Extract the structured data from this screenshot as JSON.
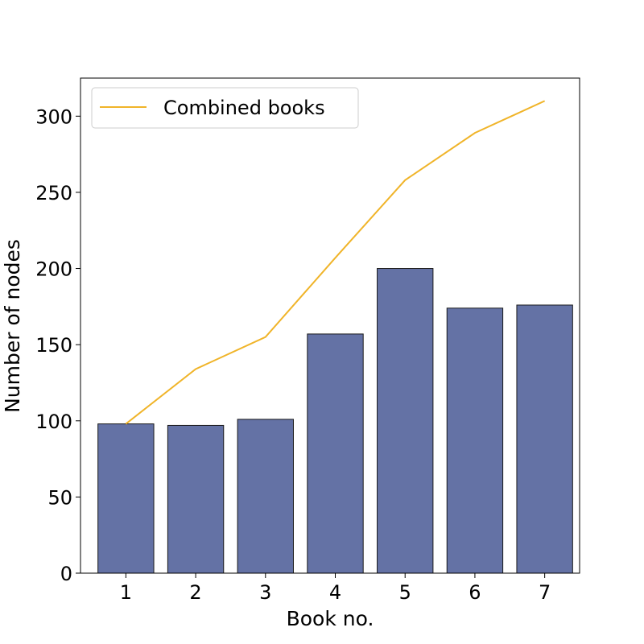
{
  "chart_data": {
    "type": "bar",
    "categories": [
      "1",
      "2",
      "3",
      "4",
      "5",
      "6",
      "7"
    ],
    "series": [
      {
        "values": [
          98,
          97,
          101,
          157,
          200,
          174,
          176
        ],
        "kind": "bar",
        "color": "#6472a5"
      },
      {
        "name": "Combined books",
        "values": [
          98,
          134,
          155,
          207,
          258,
          289,
          310
        ],
        "kind": "line",
        "color": "#f0b429"
      }
    ],
    "xlabel": "Book no.",
    "ylabel": "Number of nodes",
    "ylim": [
      0,
      325
    ],
    "yticks": [
      "0",
      "50",
      "100",
      "150",
      "200",
      "250",
      "300"
    ],
    "legend_position": "top-left",
    "grid": false
  }
}
